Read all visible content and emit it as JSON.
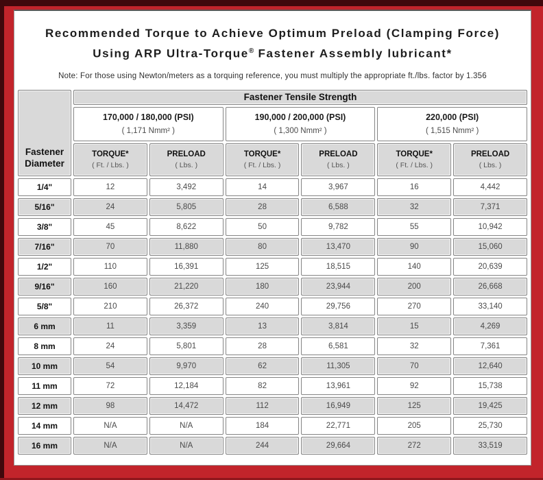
{
  "title": {
    "line1": "Recommended Torque to Achieve Optimum Preload (Clamping Force)",
    "line2_pre": "Using ARP Ultra-Torque",
    "line2_reg": "®",
    "line2_post": " Fastener Assembly lubricant*"
  },
  "note": "Note: For those using Newton/meters as a torquing reference, you must multiply the appropriate ft./lbs. factor by 1.356",
  "table": {
    "corner_header": {
      "line1": "Fastener",
      "line2": "Diameter"
    },
    "tensile_header": "Fastener Tensile Strength",
    "strength_groups": [
      {
        "psi": "170,000 / 180,000 (PSI)",
        "nmm": "( 1,171 Nmm² )"
      },
      {
        "psi": "190,000 / 200,000 (PSI)",
        "nmm": "( 1,300 Nmm² )"
      },
      {
        "psi": "220,000 (PSI)",
        "nmm": "( 1,515 Nmm² )"
      }
    ],
    "col_headers": {
      "torque_label": "TORQUE*",
      "torque_unit": "( Ft. / Lbs. )",
      "preload_label": "PRELOAD",
      "preload_unit": "( Lbs. )"
    },
    "rows": [
      {
        "diameter": "1/4\"",
        "values": [
          "12",
          "3,492",
          "14",
          "3,967",
          "16",
          "4,442"
        ]
      },
      {
        "diameter": "5/16\"",
        "values": [
          "24",
          "5,805",
          "28",
          "6,588",
          "32",
          "7,371"
        ]
      },
      {
        "diameter": "3/8\"",
        "values": [
          "45",
          "8,622",
          "50",
          "9,782",
          "55",
          "10,942"
        ]
      },
      {
        "diameter": "7/16\"",
        "values": [
          "70",
          "11,880",
          "80",
          "13,470",
          "90",
          "15,060"
        ]
      },
      {
        "diameter": "1/2\"",
        "values": [
          "110",
          "16,391",
          "125",
          "18,515",
          "140",
          "20,639"
        ]
      },
      {
        "diameter": "9/16\"",
        "values": [
          "160",
          "21,220",
          "180",
          "23,944",
          "200",
          "26,668"
        ]
      },
      {
        "diameter": "5/8\"",
        "values": [
          "210",
          "26,372",
          "240",
          "29,756",
          "270",
          "33,140"
        ]
      },
      {
        "diameter": "6 mm",
        "values": [
          "11",
          "3,359",
          "13",
          "3,814",
          "15",
          "4,269"
        ]
      },
      {
        "diameter": "8 mm",
        "values": [
          "24",
          "5,801",
          "28",
          "6,581",
          "32",
          "7,361"
        ]
      },
      {
        "diameter": "10 mm",
        "values": [
          "54",
          "9,970",
          "62",
          "11,305",
          "70",
          "12,640"
        ]
      },
      {
        "diameter": "11 mm",
        "values": [
          "72",
          "12,184",
          "82",
          "13,961",
          "92",
          "15,738"
        ]
      },
      {
        "diameter": "12 mm",
        "values": [
          "98",
          "14,472",
          "112",
          "16,949",
          "125",
          "19,425"
        ]
      },
      {
        "diameter": "14 mm",
        "values": [
          "N/A",
          "N/A",
          "184",
          "22,771",
          "205",
          "25,730"
        ]
      },
      {
        "diameter": "16 mm",
        "values": [
          "N/A",
          "N/A",
          "244",
          "29,664",
          "272",
          "33,519"
        ]
      }
    ]
  },
  "colors": {
    "frame_red": "#c2242b",
    "frame_maroon": "#40080c",
    "cell_gray": "#d9d9d9",
    "cell_border": "#848484",
    "data_text": "#4a4a4a"
  }
}
